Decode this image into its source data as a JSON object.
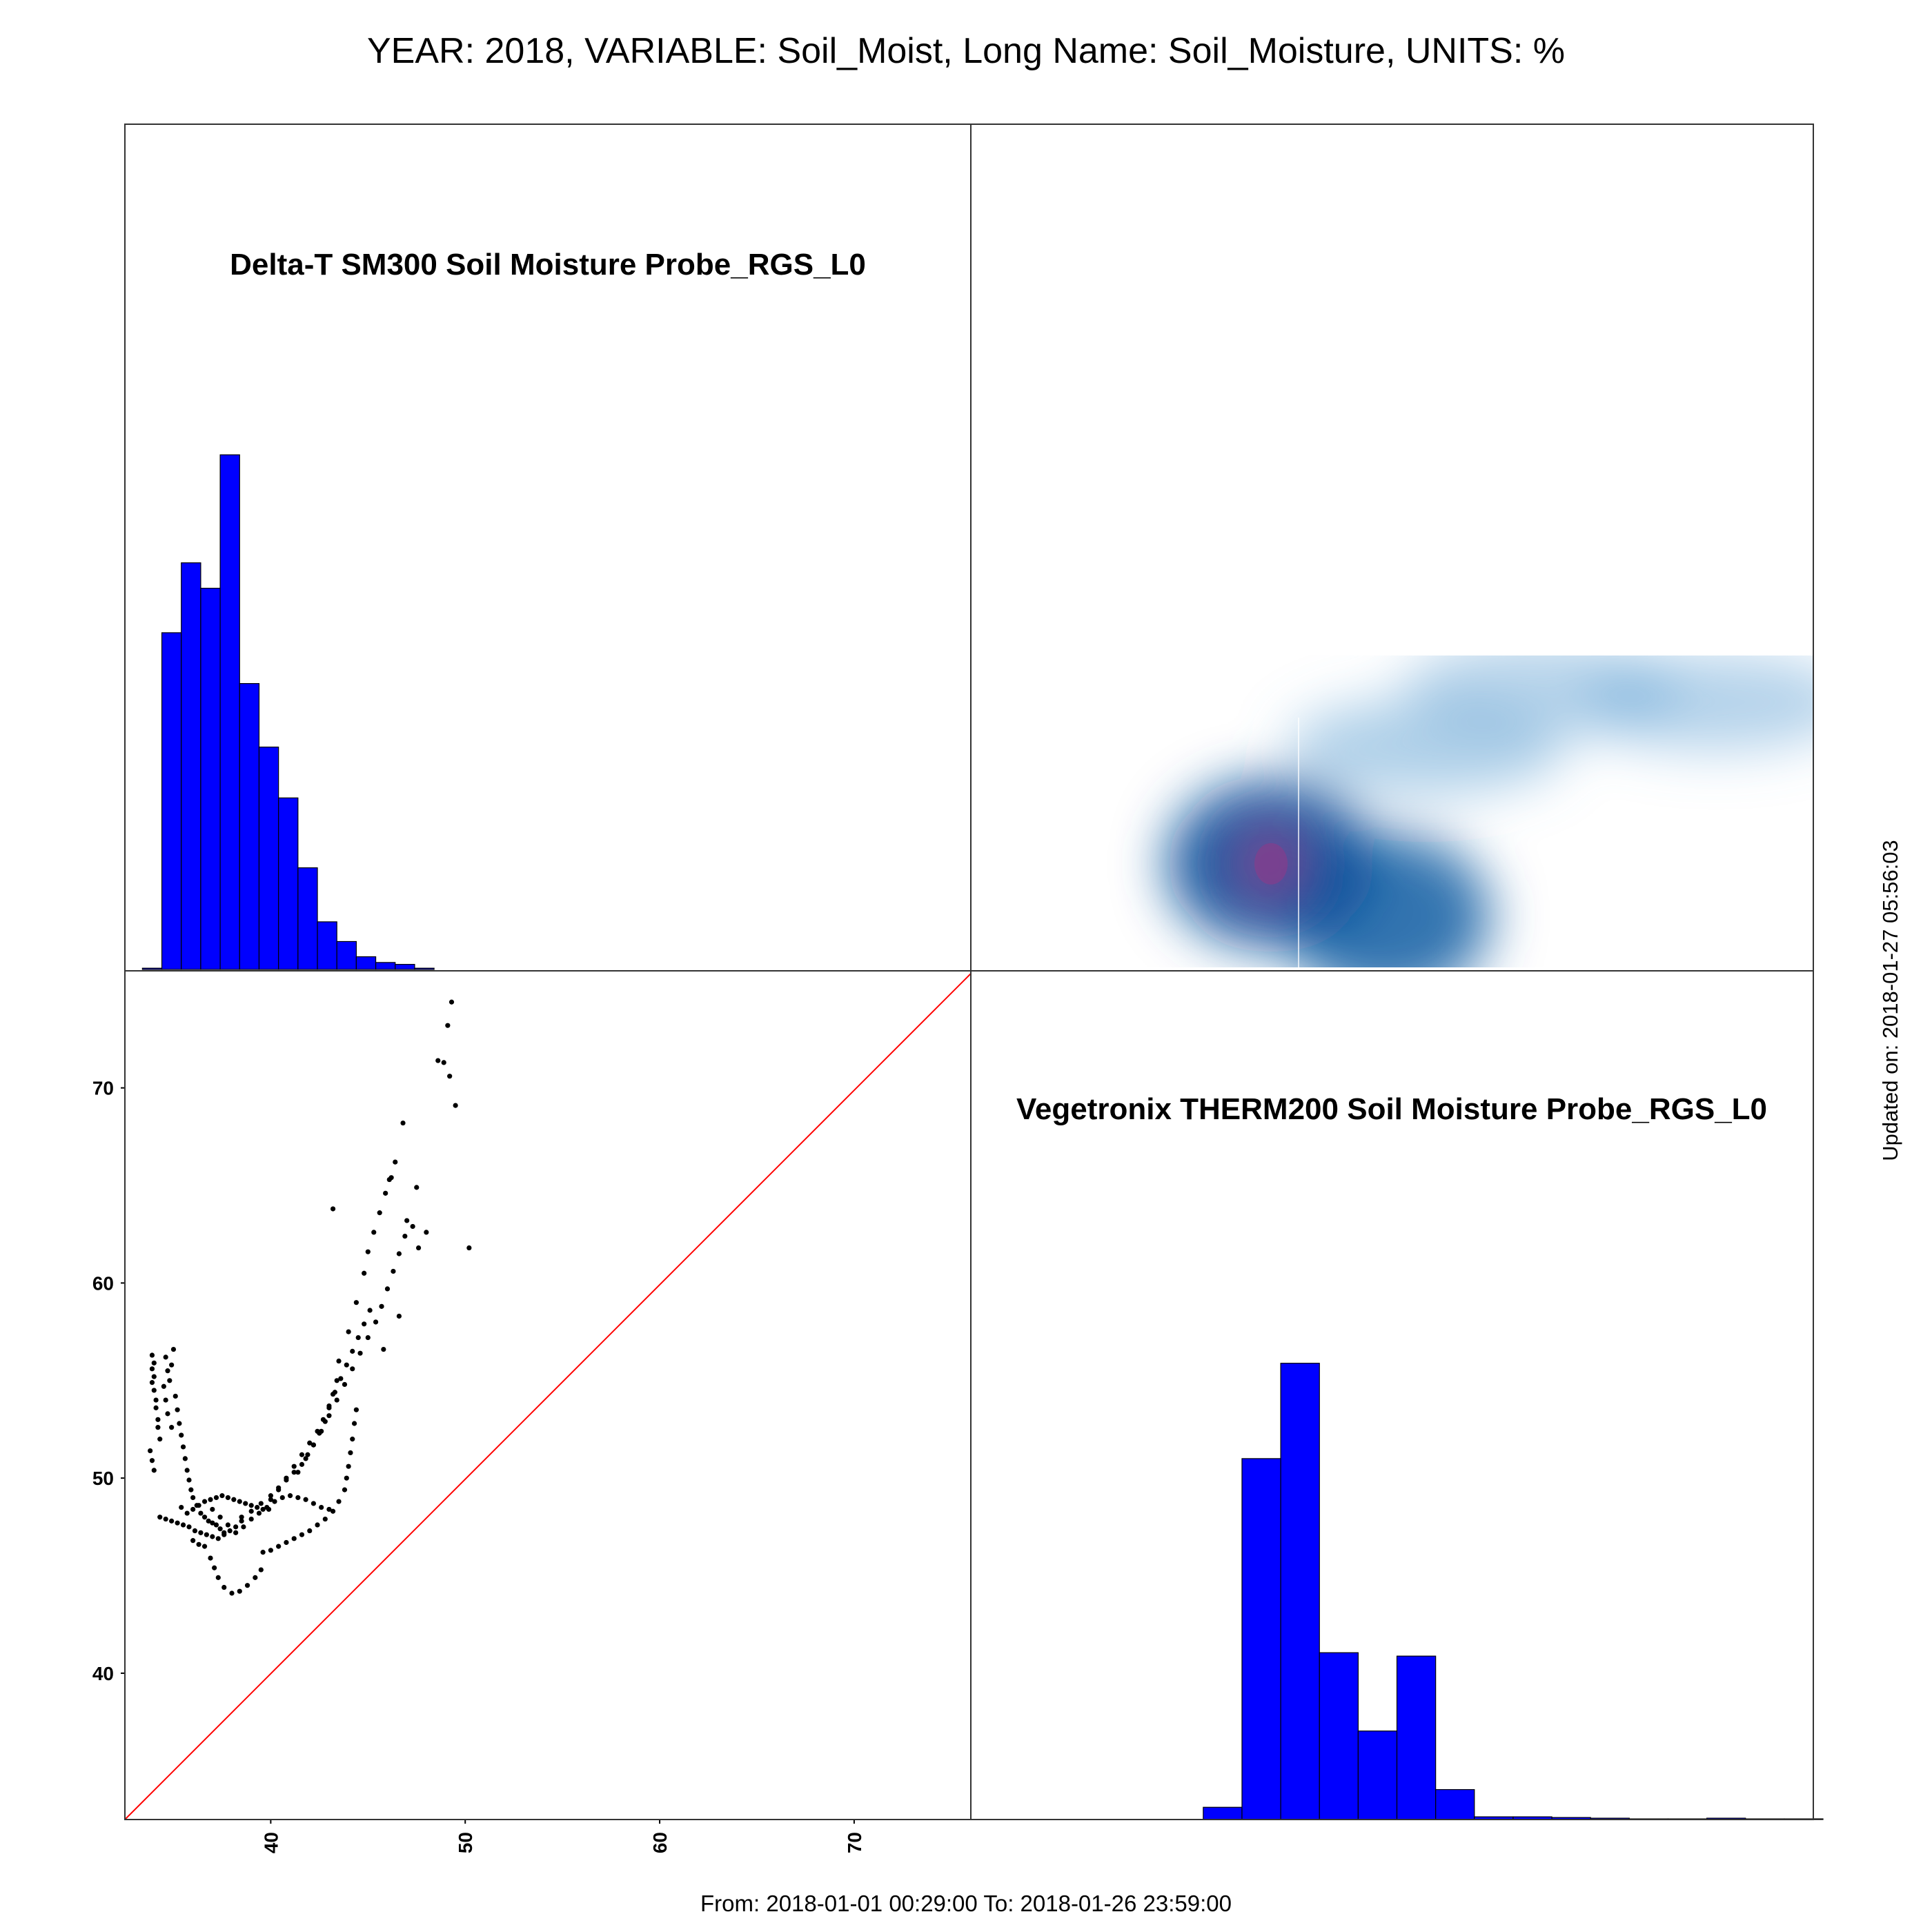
{
  "page": {
    "title": "YEAR: 2018, VARIABLE: Soil_Moist, Long Name: Soil_Moisture, UNITS: %",
    "footer": "From: 2018-01-01 00:29:00 To: 2018-01-26 23:59:00",
    "updated": "Updated on: 2018-01-27 05:56:03"
  },
  "colors": {
    "histogram_fill": "#0000ff",
    "histogram_stroke": "#000000",
    "scatter_point": "#000000",
    "identity_line": "#ff0000",
    "density_low": "#ffffff",
    "density_mid": "#08519c",
    "density_peak": "#8b3a8b"
  },
  "chart_data": [
    {
      "type": "bar",
      "panel": "top-left",
      "title": "Delta-T SM300 Soil Moisture Probe_RGS_L0",
      "x": [
        33.4,
        34.4,
        35.4,
        36.4,
        37.4,
        38.4,
        39.4,
        40.4,
        41.4,
        42.4,
        43.4,
        44.4,
        45.4,
        46.4,
        47.4
      ],
      "values": [
        0.2,
        53,
        64,
        60,
        81,
        45,
        35,
        27,
        16,
        7.5,
        4.4,
        2,
        1.1,
        0.8,
        0.2
      ],
      "xlim": [
        32.5,
        76
      ],
      "ylim": [
        0,
        120
      ],
      "grid": false
    },
    {
      "type": "heatmap",
      "panel": "top-right",
      "title": "",
      "description_note": "2D density of Vegetronix THERM200 (x) vs Delta-T SM300 (y)",
      "xlim": [
        32.5,
        76
      ],
      "ylim": [
        32.5,
        76
      ],
      "blobs": [
        {
          "x": 48.0,
          "y": 38.0,
          "weight": 1.0
        },
        {
          "x": 54.0,
          "y": 35.3,
          "weight": 0.75
        },
        {
          "x": 56.0,
          "y": 44.0,
          "weight": 0.3
        },
        {
          "x": 62.0,
          "y": 47.0,
          "weight": 0.22
        },
        {
          "x": 71.0,
          "y": 46.3,
          "weight": 0.24
        }
      ]
    },
    {
      "type": "scatter",
      "panel": "bottom-left",
      "title": "",
      "xticks": [
        40,
        50,
        60,
        70
      ],
      "yticks": [
        40,
        50,
        60,
        70
      ],
      "xlim": [
        32.5,
        76
      ],
      "ylim": [
        32.5,
        76
      ],
      "identity_line": true,
      "points": [
        [
          33.9,
          56.3
        ],
        [
          33.9,
          55.6
        ],
        [
          33.9,
          54.9
        ],
        [
          34.0,
          55.9
        ],
        [
          34.0,
          55.2
        ],
        [
          34.0,
          54.5
        ],
        [
          34.1,
          54.0
        ],
        [
          34.1,
          53.6
        ],
        [
          34.2,
          53.0
        ],
        [
          34.2,
          52.6
        ],
        [
          34.3,
          52.0
        ],
        [
          33.8,
          51.4
        ],
        [
          33.9,
          50.9
        ],
        [
          34.0,
          50.4
        ],
        [
          35.0,
          56.6
        ],
        [
          34.9,
          55.8
        ],
        [
          34.8,
          55.0
        ],
        [
          35.1,
          54.2
        ],
        [
          35.2,
          53.5
        ],
        [
          35.3,
          52.8
        ],
        [
          35.4,
          52.2
        ],
        [
          35.5,
          51.6
        ],
        [
          35.6,
          51.0
        ],
        [
          35.7,
          50.4
        ],
        [
          35.8,
          49.9
        ],
        [
          35.9,
          49.4
        ],
        [
          36.0,
          49.0
        ],
        [
          36.2,
          48.6
        ],
        [
          36.4,
          48.2
        ],
        [
          36.6,
          48.0
        ],
        [
          36.8,
          47.8
        ],
        [
          37.0,
          47.7
        ],
        [
          37.2,
          47.6
        ],
        [
          37.4,
          47.4
        ],
        [
          37.6,
          47.2
        ],
        [
          34.6,
          56.2
        ],
        [
          34.7,
          55.5
        ],
        [
          34.5,
          54.7
        ],
        [
          34.6,
          54.0
        ],
        [
          34.7,
          53.3
        ],
        [
          34.9,
          52.6
        ],
        [
          34.3,
          48.0
        ],
        [
          34.6,
          47.9
        ],
        [
          34.9,
          47.8
        ],
        [
          35.2,
          47.7
        ],
        [
          35.5,
          47.6
        ],
        [
          35.8,
          47.5
        ],
        [
          36.1,
          47.3
        ],
        [
          36.4,
          47.2
        ],
        [
          36.7,
          47.1
        ],
        [
          37.0,
          47.0
        ],
        [
          37.3,
          46.9
        ],
        [
          37.6,
          47.1
        ],
        [
          37.9,
          47.3
        ],
        [
          38.2,
          47.5
        ],
        [
          38.5,
          47.8
        ],
        [
          35.4,
          48.5
        ],
        [
          35.7,
          48.2
        ],
        [
          36.0,
          48.4
        ],
        [
          36.3,
          48.6
        ],
        [
          36.6,
          48.8
        ],
        [
          36.9,
          48.9
        ],
        [
          37.2,
          49.0
        ],
        [
          37.5,
          49.1
        ],
        [
          37.8,
          49.0
        ],
        [
          38.1,
          48.9
        ],
        [
          38.4,
          48.8
        ],
        [
          38.7,
          48.7
        ],
        [
          39.0,
          48.6
        ],
        [
          39.3,
          48.5
        ],
        [
          39.6,
          48.4
        ],
        [
          39.9,
          48.4
        ],
        [
          36.0,
          46.8
        ],
        [
          36.3,
          46.6
        ],
        [
          36.6,
          46.5
        ],
        [
          36.9,
          45.9
        ],
        [
          37.1,
          45.4
        ],
        [
          37.3,
          44.9
        ],
        [
          37.6,
          44.4
        ],
        [
          38.0,
          44.1
        ],
        [
          38.4,
          44.2
        ],
        [
          38.8,
          44.5
        ],
        [
          39.2,
          44.9
        ],
        [
          39.5,
          45.3
        ],
        [
          37.0,
          48.4
        ],
        [
          37.4,
          48.0
        ],
        [
          37.8,
          47.6
        ],
        [
          38.2,
          47.2
        ],
        [
          38.6,
          47.5
        ],
        [
          39.0,
          47.9
        ],
        [
          39.4,
          48.2
        ],
        [
          39.8,
          48.5
        ],
        [
          40.2,
          48.8
        ],
        [
          40.6,
          49.0
        ],
        [
          41.0,
          49.1
        ],
        [
          41.4,
          49.0
        ],
        [
          41.8,
          48.9
        ],
        [
          42.2,
          48.7
        ],
        [
          42.6,
          48.5
        ],
        [
          43.0,
          48.4
        ],
        [
          39.6,
          46.2
        ],
        [
          40.0,
          46.3
        ],
        [
          40.4,
          46.5
        ],
        [
          40.8,
          46.7
        ],
        [
          41.2,
          46.9
        ],
        [
          41.6,
          47.1
        ],
        [
          42.0,
          47.3
        ],
        [
          42.4,
          47.6
        ],
        [
          42.8,
          47.9
        ],
        [
          43.2,
          48.3
        ],
        [
          43.5,
          48.8
        ],
        [
          43.8,
          49.4
        ],
        [
          43.9,
          50.0
        ],
        [
          44.0,
          50.6
        ],
        [
          44.1,
          51.3
        ],
        [
          44.2,
          52.0
        ],
        [
          44.3,
          52.8
        ],
        [
          44.4,
          53.5
        ],
        [
          38.5,
          48.0
        ],
        [
          39.0,
          48.3
        ],
        [
          39.5,
          48.7
        ],
        [
          40.0,
          49.1
        ],
        [
          40.4,
          49.5
        ],
        [
          40.8,
          49.9
        ],
        [
          41.2,
          50.3
        ],
        [
          41.6,
          50.7
        ],
        [
          41.9,
          51.2
        ],
        [
          42.2,
          51.7
        ],
        [
          42.5,
          52.3
        ],
        [
          42.8,
          52.9
        ],
        [
          43.0,
          53.6
        ],
        [
          43.2,
          54.3
        ],
        [
          43.4,
          55.0
        ],
        [
          40.0,
          48.9
        ],
        [
          40.4,
          49.4
        ],
        [
          40.8,
          50.0
        ],
        [
          41.2,
          50.6
        ],
        [
          41.6,
          51.2
        ],
        [
          42.0,
          51.8
        ],
        [
          42.4,
          52.4
        ],
        [
          42.7,
          53.0
        ],
        [
          43.0,
          53.7
        ],
        [
          43.3,
          54.4
        ],
        [
          43.6,
          55.1
        ],
        [
          43.9,
          55.8
        ],
        [
          44.2,
          56.5
        ],
        [
          44.5,
          57.2
        ],
        [
          44.8,
          57.9
        ],
        [
          45.1,
          58.6
        ],
        [
          41.4,
          50.3
        ],
        [
          41.8,
          51.0
        ],
        [
          42.2,
          51.7
        ],
        [
          42.6,
          52.4
        ],
        [
          43.0,
          53.2
        ],
        [
          43.4,
          54.0
        ],
        [
          43.8,
          54.8
        ],
        [
          44.2,
          55.6
        ],
        [
          44.6,
          56.4
        ],
        [
          45.0,
          57.2
        ],
        [
          45.4,
          58.0
        ],
        [
          45.7,
          58.8
        ],
        [
          46.0,
          59.7
        ],
        [
          46.3,
          60.6
        ],
        [
          46.6,
          61.5
        ],
        [
          46.9,
          62.4
        ],
        [
          43.5,
          56.0
        ],
        [
          44.0,
          57.5
        ],
        [
          44.4,
          59.0
        ],
        [
          44.8,
          60.5
        ],
        [
          45.0,
          61.6
        ],
        [
          45.3,
          62.6
        ],
        [
          45.6,
          63.6
        ],
        [
          45.9,
          64.6
        ],
        [
          46.1,
          65.3
        ],
        [
          46.4,
          66.2
        ],
        [
          46.8,
          68.2
        ],
        [
          47.3,
          62.9
        ],
        [
          47.6,
          61.8
        ],
        [
          46.6,
          58.3
        ],
        [
          45.8,
          56.6
        ],
        [
          43.2,
          63.8
        ],
        [
          46.2,
          65.4
        ],
        [
          47.5,
          64.9
        ],
        [
          48.0,
          62.6
        ],
        [
          47.0,
          63.2
        ],
        [
          48.6,
          71.4
        ],
        [
          48.9,
          71.3
        ],
        [
          49.2,
          70.6
        ],
        [
          49.5,
          69.1
        ],
        [
          49.1,
          73.2
        ],
        [
          49.3,
          74.4
        ],
        [
          50.2,
          61.8
        ]
      ]
    },
    {
      "type": "bar",
      "panel": "bottom-right",
      "title": "Vegetronix THERM200 Soil Moisture Probe_RGS_L0",
      "x": [
        44.5,
        46.5,
        48.5,
        50.5,
        52.5,
        54.5,
        56.5,
        58.5,
        60.5,
        62.5,
        64.5,
        66.5,
        68.5,
        70.5,
        72.5,
        74.5
      ],
      "values": [
        1.8,
        53,
        67,
        24.5,
        13,
        24,
        4.4,
        0.4,
        0.4,
        0.3,
        0.2,
        0.1,
        0.1,
        0.2,
        0.1,
        0.1
      ],
      "xlim": [
        32.5,
        76
      ],
      "ylim": [
        0,
        100
      ],
      "grid": false
    }
  ]
}
